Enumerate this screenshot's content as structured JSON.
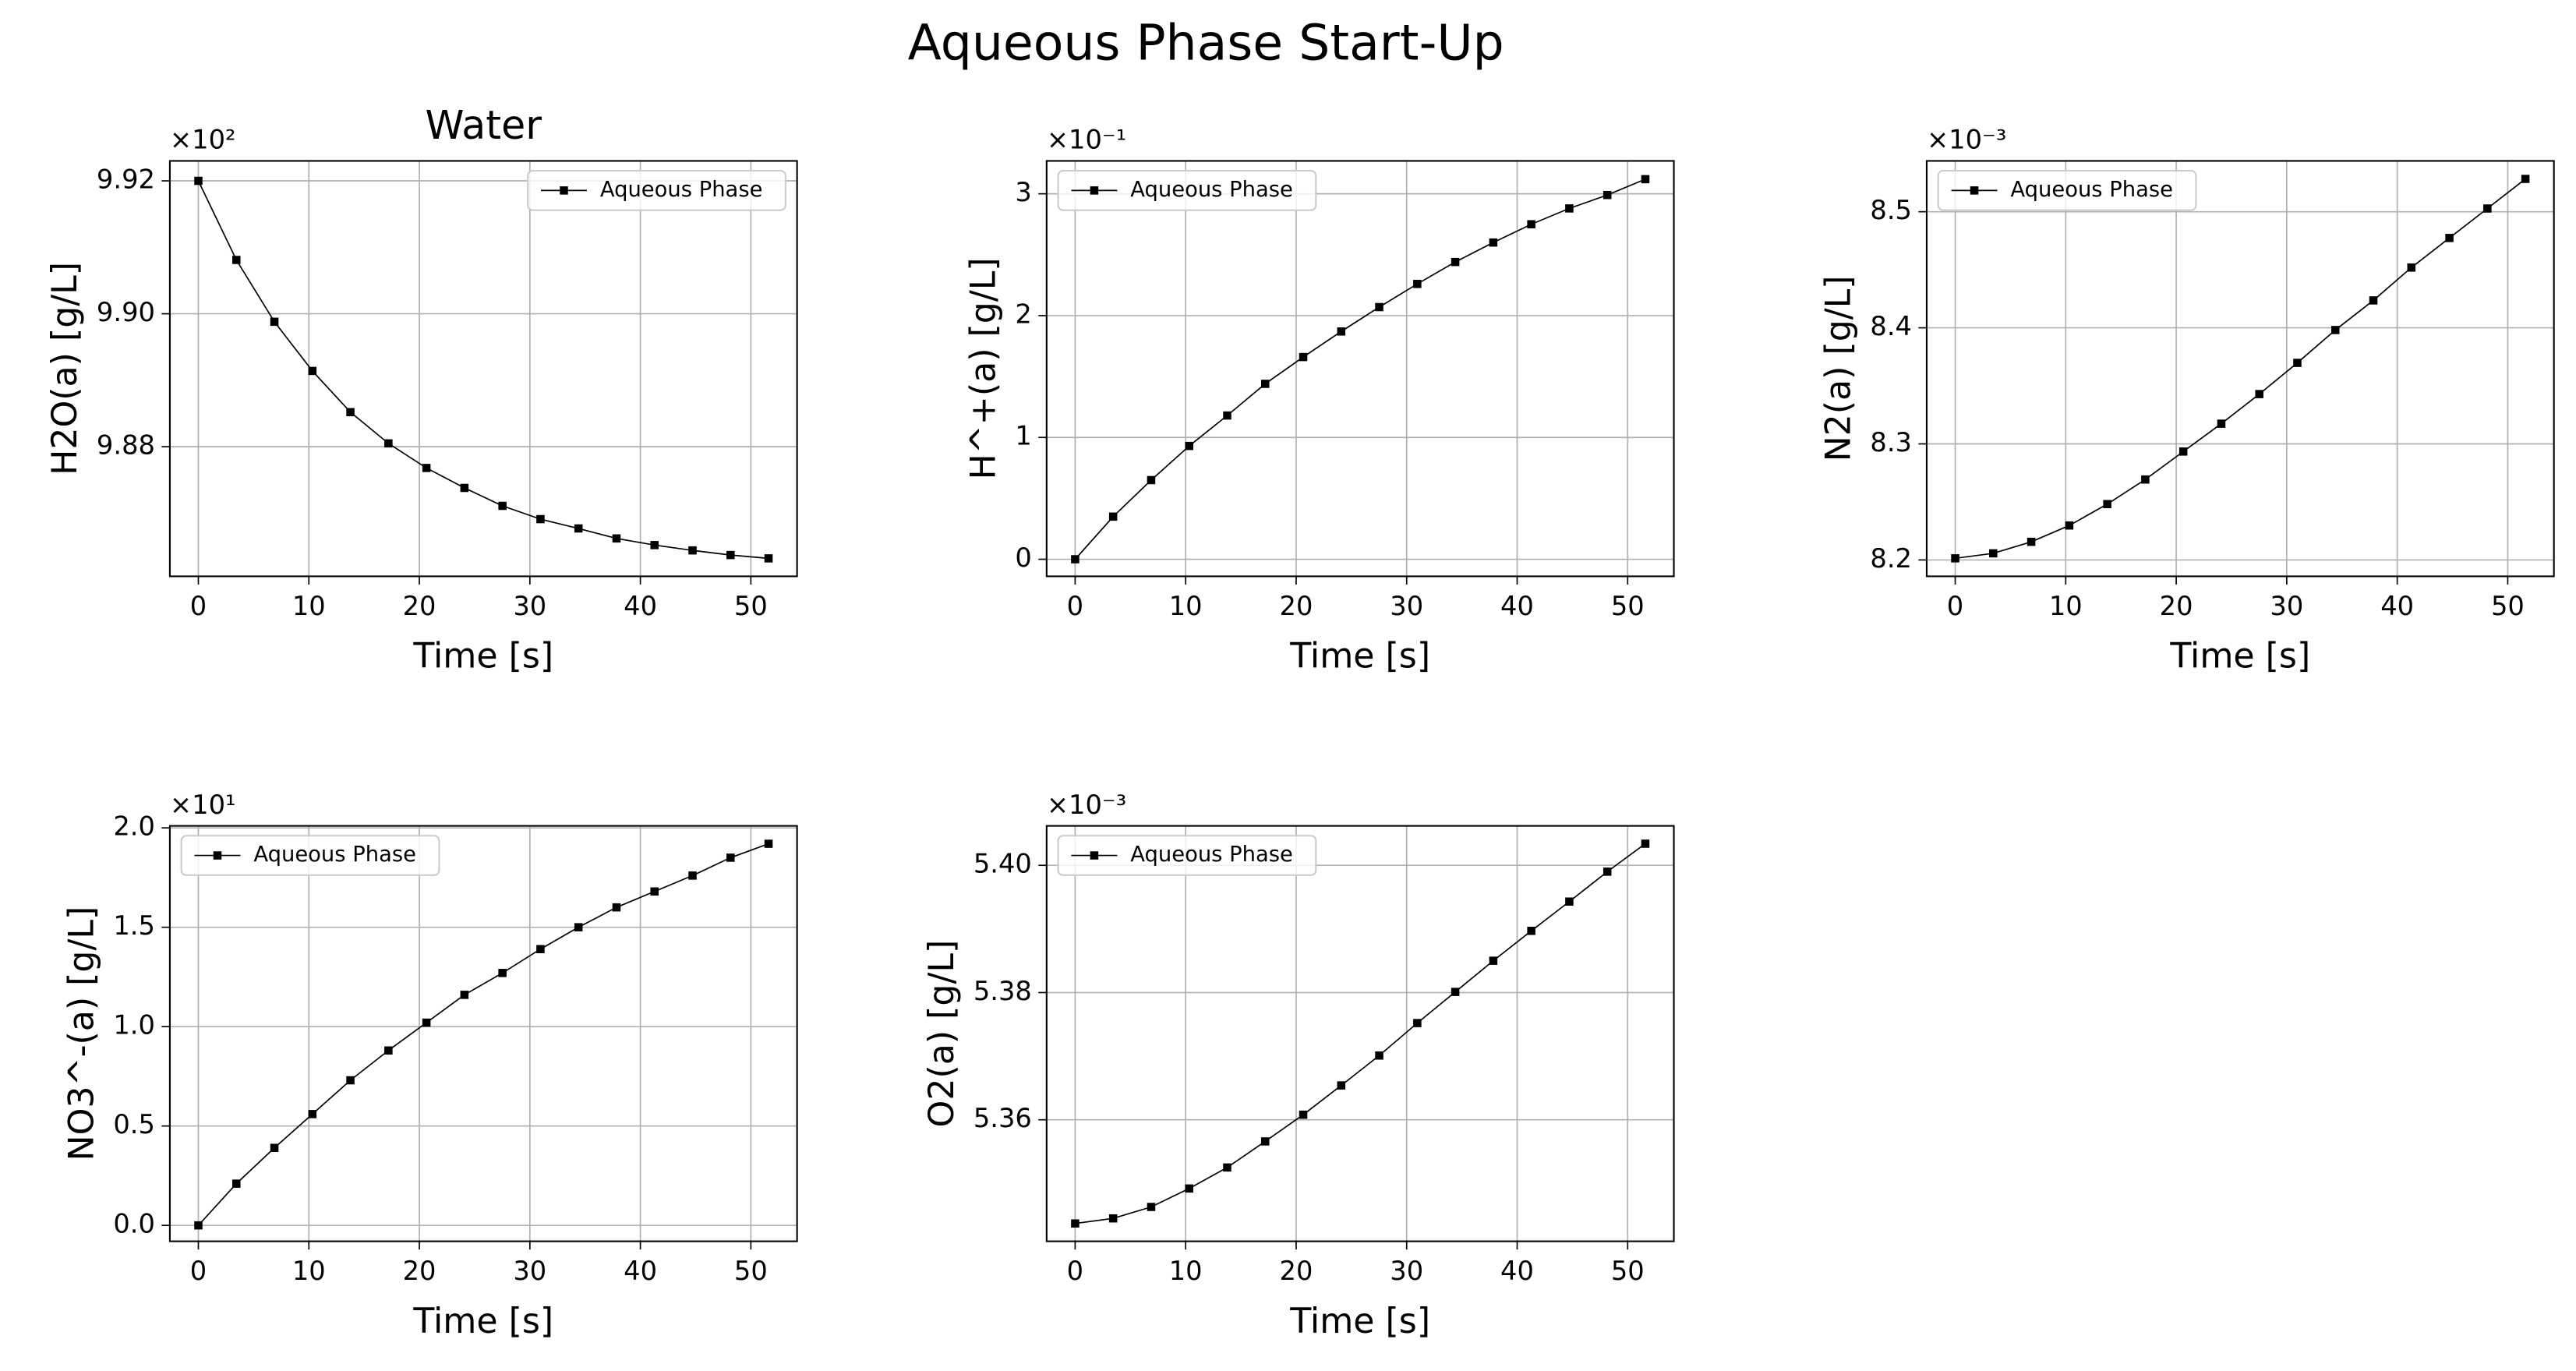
{
  "title": "Aqueous Phase Start-Up",
  "chart_data": [
    {
      "type": "line",
      "title": "Water",
      "x_label": "Time [s]",
      "y_label": "H2O(a) [g/L]",
      "offset_label": "×10²",
      "x": [
        0,
        3.44,
        6.88,
        10.32,
        13.76,
        17.2,
        20.64,
        24.08,
        27.52,
        30.96,
        34.4,
        37.84,
        41.28,
        44.72,
        48.16,
        51.6
      ],
      "xlim": [
        -2.58,
        54.18
      ],
      "xticks": [
        0,
        10,
        20,
        30,
        40,
        50
      ],
      "ylim": [
        9.8605,
        9.923
      ],
      "yticks": [
        9.88,
        {
          "value": 9.9,
          "label": "9.90"
        },
        9.92
      ],
      "grid": true,
      "legend": "upper right",
      "series": [
        {
          "name": "Aqueous Phase",
          "color": "#000000",
          "marker": "square",
          "values": [
            9.92,
            9.9081,
            9.8988,
            9.8914,
            9.8852,
            9.8805,
            9.8768,
            9.8738,
            9.8711,
            9.8691,
            9.8677,
            9.8662,
            9.8652,
            9.8644,
            9.8637,
            9.8632
          ]
        }
      ]
    },
    {
      "type": "line",
      "x_label": "Time [s]",
      "y_label": "H^+(a) [g/L]",
      "offset_label": "×10⁻¹",
      "x": [
        0,
        3.44,
        6.88,
        10.32,
        13.76,
        17.2,
        20.64,
        24.08,
        27.52,
        30.96,
        34.4,
        37.84,
        41.28,
        44.72,
        48.16,
        51.6
      ],
      "xlim": [
        -2.58,
        54.18
      ],
      "xticks": [
        0,
        10,
        20,
        30,
        40,
        50
      ],
      "ylim": [
        -0.14,
        3.27
      ],
      "yticks": [
        0,
        1,
        2,
        3
      ],
      "grid": true,
      "legend": "upper left",
      "series": [
        {
          "name": "Aqueous Phase",
          "color": "#000000",
          "marker": "square",
          "values": [
            0,
            0.35,
            0.65,
            0.93,
            1.18,
            1.44,
            1.66,
            1.87,
            2.07,
            2.26,
            2.44,
            2.6,
            2.75,
            2.88,
            2.99,
            3.12
          ]
        }
      ]
    },
    {
      "type": "line",
      "x_label": "Time [s]",
      "y_label": "N2(a) [g/L]",
      "offset_label": "×10⁻³",
      "x": [
        0,
        3.44,
        6.88,
        10.32,
        13.76,
        17.2,
        20.64,
        24.08,
        27.52,
        30.96,
        34.4,
        37.84,
        41.28,
        44.72,
        48.16,
        51.6
      ],
      "xlim": [
        -2.58,
        54.18
      ],
      "xticks": [
        0,
        10,
        20,
        30,
        40,
        50
      ],
      "ylim": [
        8.1859,
        8.5438
      ],
      "yticks": [
        8.2,
        8.3,
        8.4,
        8.5
      ],
      "grid": true,
      "legend": "upper left",
      "series": [
        {
          "name": "Aqueous Phase",
          "color": "#000000",
          "marker": "square",
          "values": [
            8.2014,
            8.2057,
            8.2156,
            8.2297,
            8.2481,
            8.2693,
            8.2934,
            8.3174,
            8.3429,
            8.3698,
            8.3981,
            8.4236,
            8.4519,
            8.4774,
            8.5028,
            8.5283
          ]
        }
      ]
    },
    {
      "type": "line",
      "x_label": "Time [s]",
      "y_label": "NO3^-(a) [g/L]",
      "offset_label": "×10¹",
      "x": [
        0,
        3.44,
        6.88,
        10.32,
        13.76,
        17.2,
        20.64,
        24.08,
        27.52,
        30.96,
        34.4,
        37.84,
        41.28,
        44.72,
        48.16,
        51.6
      ],
      "xlim": [
        -2.58,
        54.18
      ],
      "xticks": [
        0,
        10,
        20,
        30,
        40,
        50
      ],
      "ylim": [
        -0.08,
        2.01
      ],
      "yticks": [
        {
          "value": 0,
          "label": "0.0"
        },
        0.5,
        {
          "value": 1,
          "label": "1.0"
        },
        1.5,
        {
          "value": 2,
          "label": "2.0"
        }
      ],
      "grid": true,
      "legend": "upper left",
      "series": [
        {
          "name": "Aqueous Phase",
          "color": "#000000",
          "marker": "square",
          "values": [
            0,
            0.21,
            0.39,
            0.56,
            0.73,
            0.88,
            1.02,
            1.16,
            1.27,
            1.39,
            1.5,
            1.6,
            1.68,
            1.76,
            1.85,
            1.92
          ]
        }
      ]
    },
    {
      "type": "line",
      "x_label": "Time [s]",
      "y_label": "O2(a) [g/L]",
      "offset_label": "×10⁻³",
      "x": [
        0,
        3.44,
        6.88,
        10.32,
        13.76,
        17.2,
        20.64,
        24.08,
        27.52,
        30.96,
        34.4,
        37.84,
        41.28,
        44.72,
        48.16,
        51.6
      ],
      "xlim": [
        -2.58,
        54.18
      ],
      "xticks": [
        0,
        10,
        20,
        30,
        40,
        50
      ],
      "ylim": [
        5.3409,
        5.4062
      ],
      "yticks": [
        5.36,
        5.38,
        {
          "value": 5.4,
          "label": "5.40"
        }
      ],
      "grid": true,
      "legend": "upper left",
      "series": [
        {
          "name": "Aqueous Phase",
          "color": "#000000",
          "marker": "square",
          "values": [
            5.3437,
            5.3445,
            5.3463,
            5.3492,
            5.3525,
            5.3566,
            5.3608,
            5.3654,
            5.3701,
            5.3752,
            5.3801,
            5.385,
            5.3897,
            5.3943,
            5.399,
            5.4034
          ]
        }
      ]
    }
  ]
}
